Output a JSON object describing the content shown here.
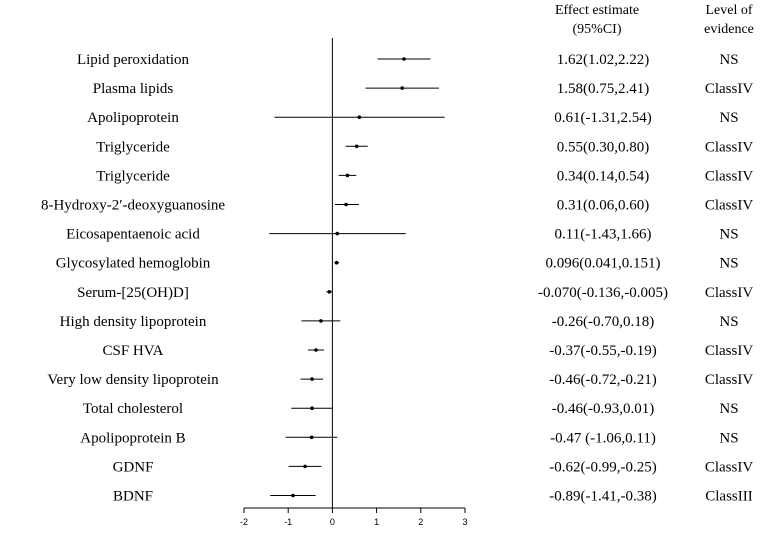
{
  "chart_data": {
    "type": "forest",
    "headers": {
      "estimate": [
        "Effect estimate",
        "(95%CI)"
      ],
      "evidence": [
        "Level of",
        "evidence"
      ]
    },
    "rows": [
      {
        "label": "Lipid peroxidation",
        "estimate": 1.62,
        "lower": 1.02,
        "upper": 2.22,
        "ci_text": "1.62(1.02,2.22)",
        "evidence": "NS"
      },
      {
        "label": "Plasma lipids",
        "estimate": 1.58,
        "lower": 0.75,
        "upper": 2.41,
        "ci_text": "1.58(0.75,2.41)",
        "evidence": "ClassIV"
      },
      {
        "label": "Apolipoprotein",
        "estimate": 0.61,
        "lower": -1.31,
        "upper": 2.54,
        "ci_text": "0.61(-1.31,2.54)",
        "evidence": "NS"
      },
      {
        "label": "Triglyceride",
        "estimate": 0.55,
        "lower": 0.3,
        "upper": 0.8,
        "ci_text": "0.55(0.30,0.80)",
        "evidence": "ClassIV"
      },
      {
        "label": "Triglyceride",
        "estimate": 0.34,
        "lower": 0.14,
        "upper": 0.54,
        "ci_text": "0.34(0.14,0.54)",
        "evidence": "ClassIV"
      },
      {
        "label": "8-Hydroxy-2′-deoxyguanosine",
        "estimate": 0.31,
        "lower": 0.06,
        "upper": 0.6,
        "ci_text": "0.31(0.06,0.60)",
        "evidence": "ClassIV"
      },
      {
        "label": "Eicosapentaenoic acid",
        "estimate": 0.11,
        "lower": -1.43,
        "upper": 1.66,
        "ci_text": "0.11(-1.43,1.66)",
        "evidence": "NS"
      },
      {
        "label": "Glycosylated hemoglobin",
        "estimate": 0.096,
        "lower": 0.041,
        "upper": 0.151,
        "ci_text": "0.096(0.041,0.151)",
        "evidence": "NS"
      },
      {
        "label": "Serum-[25(OH)D]",
        "estimate": -0.07,
        "lower": -0.136,
        "upper": -0.005,
        "ci_text": "-0.070(-0.136,-0.005)",
        "evidence": "ClassIV"
      },
      {
        "label": "High density lipoprotein",
        "estimate": -0.26,
        "lower": -0.7,
        "upper": 0.18,
        "ci_text": "-0.26(-0.70,0.18)",
        "evidence": "NS"
      },
      {
        "label": "CSF HVA",
        "estimate": -0.37,
        "lower": -0.55,
        "upper": -0.19,
        "ci_text": "-0.37(-0.55,-0.19)",
        "evidence": "ClassIV"
      },
      {
        "label": "Very low density lipoprotein",
        "estimate": -0.46,
        "lower": -0.72,
        "upper": -0.21,
        "ci_text": "-0.46(-0.72,-0.21)",
        "evidence": "ClassIV"
      },
      {
        "label": "Total cholesterol",
        "estimate": -0.46,
        "lower": -0.93,
        "upper": 0.01,
        "ci_text": "-0.46(-0.93,0.01)",
        "evidence": "NS"
      },
      {
        "label": "Apolipoprotein B",
        "estimate": -0.47,
        "lower": -1.06,
        "upper": 0.11,
        "ci_text": "-0.47 (-1.06,0.11)",
        "evidence": "NS"
      },
      {
        "label": "GDNF",
        "estimate": -0.62,
        "lower": -0.99,
        "upper": -0.25,
        "ci_text": "-0.62(-0.99,-0.25)",
        "evidence": "ClassIV"
      },
      {
        "label": "BDNF",
        "estimate": -0.89,
        "lower": -1.41,
        "upper": -0.38,
        "ci_text": "-0.89(-1.41,-0.38)",
        "evidence": "ClassIII"
      }
    ],
    "x_axis": {
      "range": [
        -2,
        3
      ],
      "ticks": [
        -2,
        -1,
        0,
        1,
        2,
        3
      ],
      "reference_line": 0
    },
    "title": "",
    "xlabel": "",
    "ylabel": "",
    "grid": false
  }
}
